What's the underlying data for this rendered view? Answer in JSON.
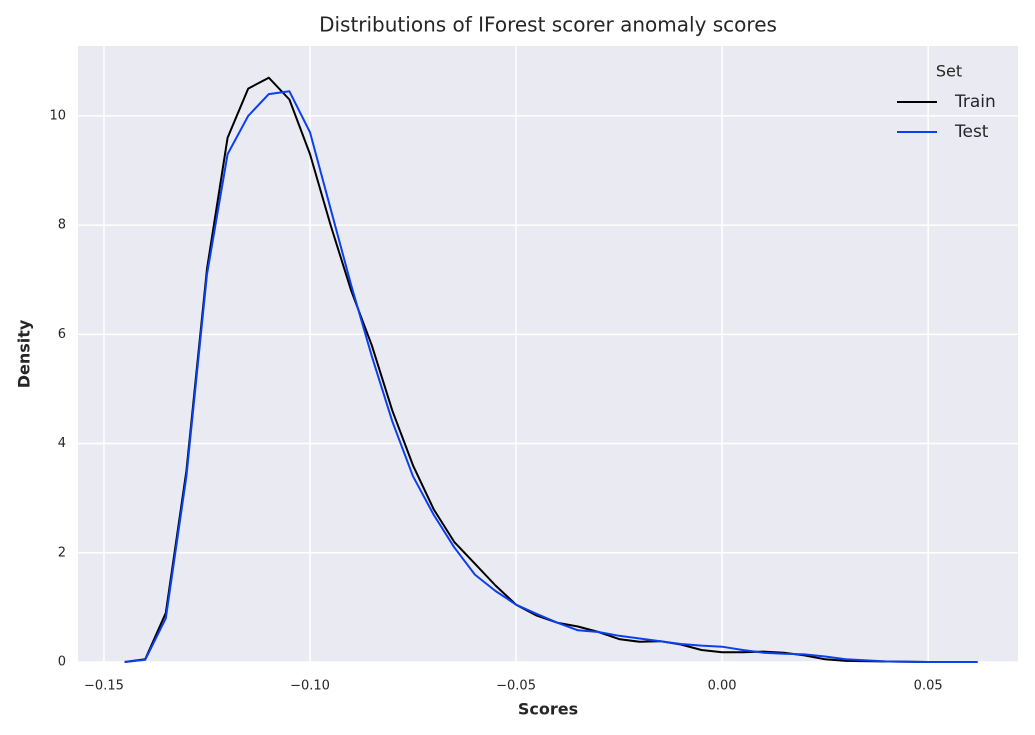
{
  "chart_data": {
    "type": "line",
    "title": "Distributions of IForest scorer anomaly scores",
    "xlabel": "Scores",
    "ylabel": "Density",
    "legend_title": "Set",
    "legend_position": "upper right",
    "grid": true,
    "x": [
      -0.145,
      -0.14,
      -0.135,
      -0.13,
      -0.125,
      -0.12,
      -0.115,
      -0.11,
      -0.105,
      -0.1,
      -0.095,
      -0.09,
      -0.085,
      -0.08,
      -0.075,
      -0.07,
      -0.065,
      -0.06,
      -0.055,
      -0.05,
      -0.045,
      -0.04,
      -0.035,
      -0.03,
      -0.025,
      -0.02,
      -0.015,
      -0.01,
      -0.005,
      0,
      0.005,
      0.01,
      0.015,
      0.02,
      0.025,
      0.03,
      0.04,
      0.05,
      0.062
    ],
    "series": [
      {
        "name": "Train",
        "color": "#000000",
        "values": [
          0,
          0.05,
          0.9,
          3.5,
          7.2,
          9.6,
          10.5,
          10.7,
          10.3,
          9.3,
          8.0,
          6.8,
          5.8,
          4.6,
          3.6,
          2.8,
          2.2,
          1.8,
          1.4,
          1.05,
          0.85,
          0.72,
          0.65,
          0.55,
          0.42,
          0.37,
          0.38,
          0.32,
          0.22,
          0.18,
          0.18,
          0.19,
          0.17,
          0.12,
          0.05,
          0.02,
          0.01,
          0,
          0
        ]
      },
      {
        "name": "Test",
        "color": "#0b3ff0",
        "values": [
          0,
          0.04,
          0.8,
          3.4,
          7.1,
          9.3,
          10.0,
          10.4,
          10.45,
          9.7,
          8.3,
          6.9,
          5.6,
          4.4,
          3.4,
          2.7,
          2.1,
          1.6,
          1.3,
          1.05,
          0.88,
          0.72,
          0.58,
          0.55,
          0.48,
          0.43,
          0.38,
          0.33,
          0.3,
          0.28,
          0.22,
          0.17,
          0.15,
          0.14,
          0.1,
          0.05,
          0.01,
          0,
          0
        ]
      }
    ],
    "xlim": [
      -0.1563,
      0.0718
    ],
    "ylim": [
      0,
      11.28
    ],
    "xticks": [
      {
        "value": -0.15,
        "label": "−0.15"
      },
      {
        "value": -0.1,
        "label": "−0.10"
      },
      {
        "value": -0.05,
        "label": "−0.05"
      },
      {
        "value": 0,
        "label": "0.00"
      },
      {
        "value": 0.05,
        "label": "0.05"
      }
    ],
    "yticks": [
      0,
      2,
      4,
      6,
      8,
      10
    ]
  }
}
